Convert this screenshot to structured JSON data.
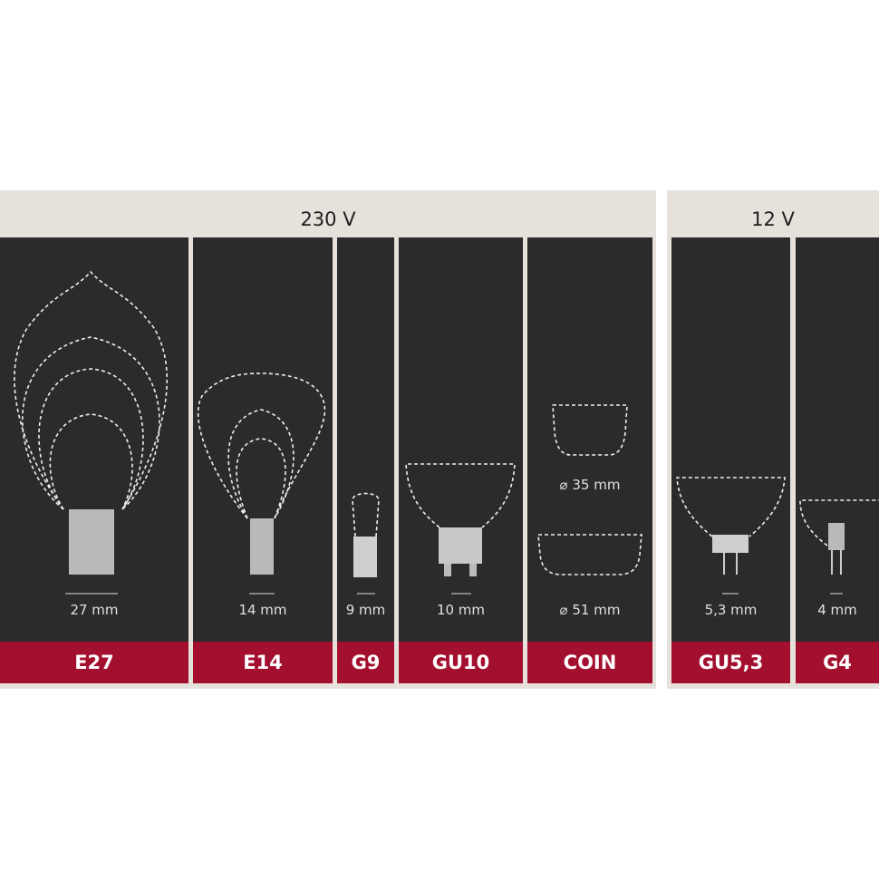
{
  "colors": {
    "panel": "#2b2b2b",
    "band": "#e6e1da",
    "label": "#a30f2e"
  },
  "groups": [
    {
      "voltage": "230 V"
    },
    {
      "voltage": "12 V"
    }
  ],
  "bases": [
    {
      "name": "E27",
      "size": "27 mm"
    },
    {
      "name": "E14",
      "size": "14 mm"
    },
    {
      "name": "G9",
      "size": "9 mm"
    },
    {
      "name": "GU10",
      "size": "10 mm"
    },
    {
      "name": "COIN",
      "size": "⌀ 51 mm",
      "size_small": "⌀ 35 mm"
    },
    {
      "name": "GU5,3",
      "size": "5,3 mm"
    },
    {
      "name": "G4",
      "size": "4 mm"
    }
  ]
}
